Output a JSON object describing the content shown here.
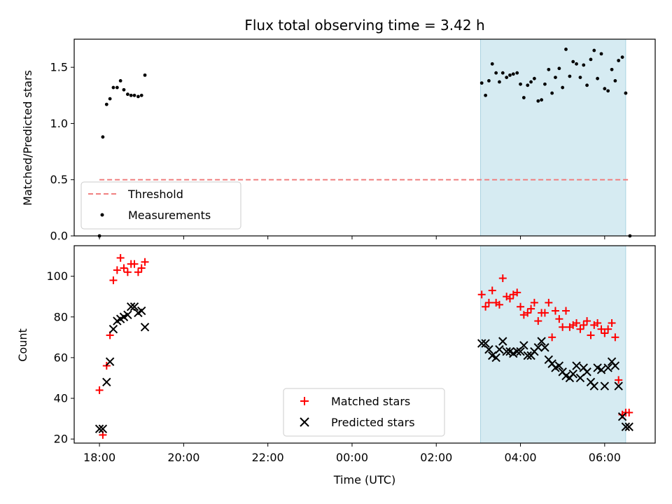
{
  "chart_data": [
    {
      "type": "scatter",
      "title": "Flux total observing time = 3.42 h",
      "xlabel": "",
      "ylabel": "Matched/Predicted stars",
      "xlim": [
        -0.6,
        13.2
      ],
      "ylim": [
        0,
        1.75
      ],
      "yticks": [
        0.0,
        0.5,
        1.0,
        1.5
      ],
      "ytick_labels": [
        "0.0",
        "0.5",
        "1.0",
        "1.5"
      ],
      "highlight_span": [
        9.05,
        12.5
      ],
      "highlight_color": "#add8e6",
      "legend": {
        "placement": "lower-left",
        "entries": [
          "Threshold",
          "Measurements"
        ]
      },
      "series": [
        {
          "name": "Threshold",
          "style": "dashed-line",
          "color": "#f08080",
          "x": [
            0.0,
            12.6
          ],
          "y": [
            0.5,
            0.5
          ]
        },
        {
          "name": "Measurements",
          "style": "dot",
          "color": "#000000",
          "x": [
            0.0,
            0.08,
            0.17,
            0.25,
            0.33,
            0.42,
            0.5,
            0.58,
            0.67,
            0.75,
            0.83,
            0.92,
            1.0,
            1.08,
            9.08,
            9.17,
            9.25,
            9.33,
            9.42,
            9.5,
            9.58,
            9.67,
            9.75,
            9.83,
            9.92,
            10.0,
            10.08,
            10.17,
            10.25,
            10.33,
            10.42,
            10.5,
            10.58,
            10.67,
            10.75,
            10.83,
            10.92,
            11.0,
            11.08,
            11.17,
            11.25,
            11.33,
            11.42,
            11.5,
            11.58,
            11.67,
            11.75,
            11.83,
            11.92,
            12.0,
            12.08,
            12.17,
            12.25,
            12.33,
            12.42,
            12.5,
            12.6
          ],
          "y": [
            0.0,
            0.88,
            1.17,
            1.22,
            1.32,
            1.32,
            1.38,
            1.3,
            1.26,
            1.25,
            1.25,
            1.24,
            1.25,
            1.43,
            1.36,
            1.25,
            1.38,
            1.53,
            1.45,
            1.37,
            1.45,
            1.41,
            1.43,
            1.44,
            1.45,
            1.35,
            1.23,
            1.34,
            1.37,
            1.4,
            1.2,
            1.21,
            1.35,
            1.48,
            1.27,
            1.41,
            1.49,
            1.32,
            1.66,
            1.42,
            1.55,
            1.53,
            1.41,
            1.52,
            1.34,
            1.57,
            1.65,
            1.4,
            1.62,
            1.31,
            1.29,
            1.48,
            1.38,
            1.56,
            1.59,
            1.27,
            0.0
          ]
        }
      ]
    },
    {
      "type": "scatter",
      "xlabel": "Time (UTC)",
      "ylabel": "Count",
      "xlim": [
        -0.6,
        13.2
      ],
      "ylim": [
        18,
        115
      ],
      "xticks": [
        0,
        2,
        4,
        6,
        8,
        10,
        12
      ],
      "xtick_labels": [
        "18:00",
        "20:00",
        "22:00",
        "00:00",
        "02:00",
        "04:00",
        "06:00"
      ],
      "yticks": [
        20,
        40,
        60,
        80,
        100
      ],
      "ytick_labels": [
        "20",
        "40",
        "60",
        "80",
        "100"
      ],
      "highlight_span": [
        9.05,
        12.5
      ],
      "highlight_color": "#add8e6",
      "legend": {
        "placement": "lower-center",
        "entries": [
          "Matched stars",
          "Predicted stars"
        ]
      },
      "series": [
        {
          "name": "Matched stars",
          "marker": "plus",
          "color": "#ff0000",
          "x": [
            0.0,
            0.08,
            0.17,
            0.25,
            0.33,
            0.42,
            0.5,
            0.58,
            0.67,
            0.75,
            0.83,
            0.92,
            1.0,
            1.08,
            9.08,
            9.17,
            9.25,
            9.33,
            9.42,
            9.5,
            9.58,
            9.67,
            9.75,
            9.83,
            9.92,
            10.0,
            10.08,
            10.17,
            10.25,
            10.33,
            10.42,
            10.5,
            10.58,
            10.67,
            10.75,
            10.83,
            10.92,
            11.0,
            11.08,
            11.17,
            11.25,
            11.33,
            11.42,
            11.5,
            11.58,
            11.67,
            11.75,
            11.83,
            11.92,
            12.0,
            12.08,
            12.17,
            12.25,
            12.33,
            12.42,
            12.5,
            12.58
          ],
          "y": [
            44,
            22,
            56,
            71,
            98,
            103,
            109,
            104,
            102,
            106,
            106,
            102,
            104,
            107,
            91,
            85,
            87,
            93,
            87,
            86,
            99,
            90,
            89,
            91,
            92,
            85,
            81,
            82,
            84,
            87,
            78,
            82,
            82,
            87,
            70,
            83,
            79,
            75,
            83,
            75,
            76,
            77,
            74,
            76,
            78,
            71,
            76,
            77,
            74,
            72,
            74,
            77,
            70,
            49,
            32,
            33,
            33
          ]
        },
        {
          "name": "Predicted stars",
          "marker": "x",
          "color": "#000000",
          "x": [
            0.0,
            0.08,
            0.17,
            0.25,
            0.33,
            0.42,
            0.5,
            0.58,
            0.67,
            0.75,
            0.83,
            0.92,
            1.0,
            1.08,
            9.08,
            9.17,
            9.25,
            9.33,
            9.42,
            9.5,
            9.58,
            9.67,
            9.75,
            9.83,
            9.92,
            10.0,
            10.08,
            10.17,
            10.25,
            10.33,
            10.42,
            10.5,
            10.58,
            10.67,
            10.75,
            10.83,
            10.92,
            11.0,
            11.08,
            11.17,
            11.25,
            11.33,
            11.42,
            11.5,
            11.58,
            11.67,
            11.75,
            11.83,
            11.92,
            12.0,
            12.08,
            12.17,
            12.25,
            12.33,
            12.42,
            12.5,
            12.58
          ],
          "y": [
            25,
            25,
            48,
            58,
            74,
            78,
            79,
            80,
            81,
            85,
            85,
            82,
            83,
            75,
            67,
            67,
            64,
            61,
            60,
            64,
            68,
            63,
            63,
            62,
            63,
            63,
            66,
            61,
            61,
            63,
            65,
            68,
            65,
            59,
            57,
            55,
            56,
            53,
            51,
            50,
            52,
            56,
            50,
            55,
            53,
            48,
            46,
            55,
            54,
            46,
            55,
            58,
            56,
            46,
            31,
            26,
            26
          ]
        }
      ]
    }
  ]
}
